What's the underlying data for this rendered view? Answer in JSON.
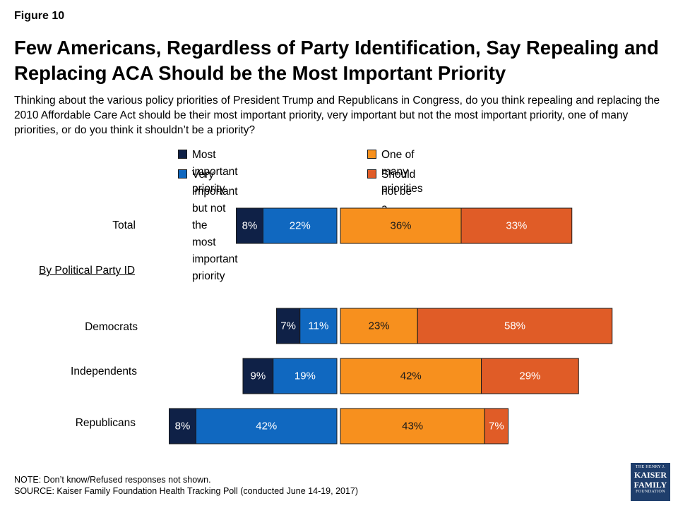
{
  "figure_label": "Figure 10",
  "title": "Few Americans, Regardless of Party Identification, Say Repealing and Replacing ACA Should be the Most Important Priority",
  "subtitle": "Thinking about the various policy priorities of President Trump and Republicans in Congress, do you think repealing and replacing the 2010 Affordable Care Act should be their most important priority, very important but not the most important priority, one of many priorities, or do you think it shouldn’t be a priority?",
  "group_label": "By Political Party ID",
  "note": "NOTE: Don’t know/Refused responses not shown.",
  "source": "SOURCE: Kaiser Family Foundation Health Tracking Poll (conducted June 14-19, 2017)",
  "logo": {
    "line1": "THE HENRY J.",
    "line2": "KAISER",
    "line3": "FAMILY",
    "line4": "FOUNDATION"
  },
  "colors": {
    "most_important": "#0f2147",
    "very_important": "#1068c0",
    "one_of_many": "#f7901e",
    "not_priority": "#e05c27"
  },
  "chart_data": {
    "type": "bar",
    "orientation": "horizontal",
    "stacked": "diverging",
    "categories": [
      "Total",
      "Democrats",
      "Independents",
      "Republicans"
    ],
    "series": [
      {
        "name": "Most important priority",
        "side": "left",
        "values": [
          8,
          7,
          9,
          8
        ],
        "labels": [
          "8%",
          "7%",
          "9%",
          "8%"
        ]
      },
      {
        "name": "Very important but not the most important priority",
        "side": "left",
        "values": [
          22,
          11,
          19,
          42
        ],
        "labels": [
          "22%",
          "11%",
          "19%",
          "42%"
        ]
      },
      {
        "name": "One of many priorities",
        "side": "right",
        "values": [
          36,
          23,
          42,
          43
        ],
        "labels": [
          "36%",
          "23%",
          "42%",
          "43%"
        ]
      },
      {
        "name": "Should not be a priority",
        "side": "right",
        "values": [
          33,
          58,
          29,
          7
        ],
        "labels": [
          "33%",
          "58%",
          "29%",
          "7%"
        ]
      }
    ],
    "legend": {
      "placement": "top",
      "entries": [
        "Most important priority",
        "Very important but not the most important priority",
        "One of many priorities",
        "Should not be a priority"
      ],
      "display_lines": [
        [
          "Most important priority"
        ],
        [
          "Very important but not the",
          "most important priority"
        ],
        [
          "One of many priorities"
        ],
        [
          "Should not be a priority"
        ]
      ]
    },
    "grid": false,
    "axes_shown": false
  }
}
